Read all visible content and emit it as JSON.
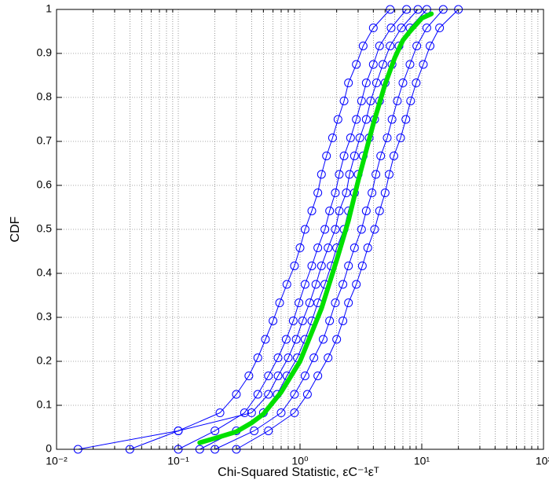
{
  "chart_data": {
    "type": "line",
    "log_x": true,
    "grid": true,
    "xlabel": "Chi-Squared Statistic, εC⁻¹εᵀ",
    "ylabel": "CDF",
    "xlim": [
      0.01,
      100
    ],
    "ylim": [
      0,
      1
    ],
    "xticks": [
      {
        "value": 0.01,
        "label": "10⁻²"
      },
      {
        "value": 0.1,
        "label": "10⁻¹"
      },
      {
        "value": 1,
        "label": "10⁰"
      },
      {
        "value": 10,
        "label": "10¹"
      },
      {
        "value": 100,
        "label": "10²"
      }
    ],
    "xminorticks": [
      0.02,
      0.03,
      0.04,
      0.05,
      0.06,
      0.07,
      0.08,
      0.09,
      0.2,
      0.3,
      0.4,
      0.5,
      0.6,
      0.7,
      0.8,
      0.9,
      2,
      3,
      4,
      5,
      6,
      7,
      8,
      9,
      20,
      30,
      40,
      50,
      60,
      70,
      80,
      90
    ],
    "yticks": [
      0,
      0.1,
      0.2,
      0.3,
      0.4,
      0.5,
      0.6,
      0.7,
      0.8,
      0.9,
      1
    ],
    "series": [
      {
        "color": "#0000ff",
        "marker": "circle",
        "line_width": 1,
        "x": [
          0.015,
          0.1,
          0.22,
          0.3,
          0.38,
          0.45,
          0.52,
          0.6,
          0.68,
          0.78,
          0.9,
          1.0,
          1.1,
          1.25,
          1.4,
          1.5,
          1.65,
          1.85,
          2.05,
          2.3,
          2.5,
          2.9,
          3.3,
          4,
          5.5
        ],
        "values": [
          0,
          0.042,
          0.083,
          0.125,
          0.167,
          0.208,
          0.25,
          0.292,
          0.333,
          0.375,
          0.417,
          0.458,
          0.5,
          0.542,
          0.583,
          0.625,
          0.667,
          0.708,
          0.75,
          0.792,
          0.833,
          0.875,
          0.917,
          0.958,
          1
        ]
      },
      {
        "color": "#0000ff",
        "marker": "circle",
        "line_width": 1,
        "x": [
          0.1,
          0.2,
          0.35,
          0.45,
          0.55,
          0.66,
          0.77,
          0.88,
          0.98,
          1.1,
          1.25,
          1.4,
          1.6,
          1.75,
          1.95,
          2.1,
          2.3,
          2.6,
          2.9,
          3.2,
          3.5,
          4,
          4.5,
          5.6,
          7.5
        ],
        "values": [
          0,
          0.042,
          0.083,
          0.125,
          0.167,
          0.208,
          0.25,
          0.292,
          0.333,
          0.375,
          0.417,
          0.458,
          0.5,
          0.542,
          0.583,
          0.625,
          0.667,
          0.708,
          0.75,
          0.792,
          0.833,
          0.875,
          0.917,
          0.958,
          1
        ]
      },
      {
        "color": "#0000ff",
        "marker": "circle",
        "line_width": 1,
        "x": [
          0.15,
          0.3,
          0.5,
          0.65,
          0.78,
          0.95,
          1.1,
          1.25,
          1.4,
          1.6,
          1.8,
          2,
          2.3,
          2.5,
          2.8,
          3,
          3.3,
          3.7,
          4.1,
          4.5,
          5,
          5.7,
          6.5,
          8,
          11
        ],
        "values": [
          0,
          0.042,
          0.083,
          0.125,
          0.167,
          0.208,
          0.25,
          0.292,
          0.333,
          0.375,
          0.417,
          0.458,
          0.5,
          0.542,
          0.583,
          0.625,
          0.667,
          0.708,
          0.75,
          0.792,
          0.833,
          0.875,
          0.917,
          0.958,
          1
        ]
      },
      {
        "color": "#0000ff",
        "marker": "circle",
        "line_width": 1,
        "x": [
          0.2,
          0.42,
          0.7,
          0.9,
          1.1,
          1.3,
          1.55,
          1.75,
          1.95,
          2.25,
          2.5,
          2.8,
          3.2,
          3.5,
          3.9,
          4.2,
          4.6,
          5.2,
          5.7,
          6.3,
          7,
          8,
          9.1,
          11,
          15
        ],
        "values": [
          0,
          0.042,
          0.083,
          0.125,
          0.167,
          0.208,
          0.25,
          0.292,
          0.333,
          0.375,
          0.417,
          0.458,
          0.5,
          0.542,
          0.583,
          0.625,
          0.667,
          0.708,
          0.75,
          0.792,
          0.833,
          0.875,
          0.917,
          0.958,
          1
        ]
      },
      {
        "color": "#0000ff",
        "marker": "circle",
        "line_width": 1,
        "x": [
          0.3,
          0.55,
          0.9,
          1.15,
          1.4,
          1.7,
          2,
          2.25,
          2.5,
          2.9,
          3.25,
          3.6,
          4.1,
          4.5,
          5,
          5.4,
          5.9,
          6.7,
          7.4,
          8.1,
          9,
          10.3,
          11.7,
          14,
          20
        ],
        "values": [
          0,
          0.042,
          0.083,
          0.125,
          0.167,
          0.208,
          0.25,
          0.292,
          0.333,
          0.375,
          0.417,
          0.458,
          0.5,
          0.542,
          0.583,
          0.625,
          0.667,
          0.708,
          0.75,
          0.792,
          0.833,
          0.875,
          0.917,
          0.958,
          1
        ]
      },
      {
        "color": "#0000ff",
        "marker": "circle",
        "line_width": 1,
        "x": [
          0.04,
          0.1,
          0.4,
          0.55,
          0.66,
          0.8,
          0.93,
          1.05,
          1.2,
          1.35,
          1.5,
          1.7,
          1.95,
          2.1,
          2.4,
          2.55,
          2.8,
          3.1,
          3.5,
          3.8,
          4.25,
          4.8,
          5.5,
          6.8,
          9.3
        ],
        "values": [
          0,
          0.042,
          0.083,
          0.125,
          0.167,
          0.208,
          0.25,
          0.292,
          0.333,
          0.375,
          0.417,
          0.458,
          0.5,
          0.542,
          0.583,
          0.625,
          0.667,
          0.708,
          0.75,
          0.792,
          0.833,
          0.875,
          0.917,
          0.958,
          1
        ]
      },
      {
        "color": "#00e000",
        "line_width": 6,
        "x": [
          0.15,
          0.2,
          0.3,
          0.4,
          0.5,
          0.7,
          1,
          1.5,
          2,
          2.5,
          3,
          4,
          5,
          6,
          7,
          8,
          10,
          12
        ],
        "values": [
          0.015,
          0.025,
          0.04,
          0.06,
          0.08,
          0.13,
          0.2,
          0.32,
          0.43,
          0.52,
          0.61,
          0.74,
          0.83,
          0.89,
          0.93,
          0.95,
          0.98,
          0.99
        ]
      }
    ]
  }
}
